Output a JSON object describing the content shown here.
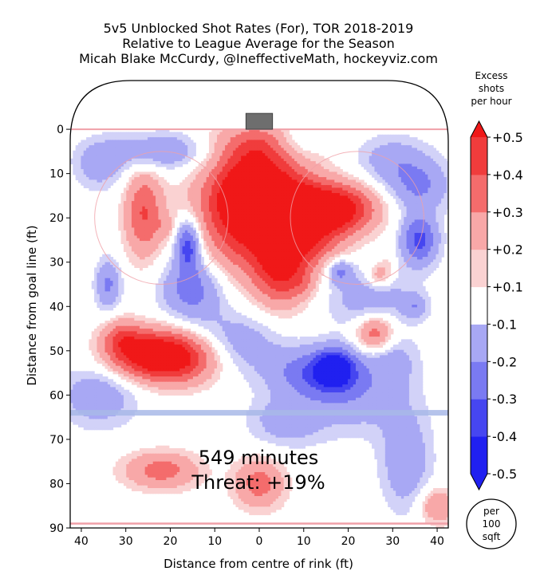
{
  "chart_data": {
    "type": "heatmap",
    "title_lines": [
      "5v5 Unblocked Shot Rates (For), TOR 2018-2019",
      "Relative to League Average for the Season",
      "Micah Blake McCurdy, @IneffectiveMath, hockeyviz.com"
    ],
    "xlabel": "Distance from centre of rink (ft)",
    "ylabel": "Distance from goal line (ft)",
    "xlim": [
      -42.5,
      42.5
    ],
    "ylim": [
      -11,
      90
    ],
    "x_ticks": [
      -40,
      -30,
      -20,
      -10,
      0,
      10,
      20,
      30,
      40
    ],
    "x_tick_labels": [
      "40",
      "30",
      "20",
      "10",
      "0",
      "10",
      "20",
      "30",
      "40"
    ],
    "y_ticks": [
      0,
      10,
      20,
      30,
      40,
      50,
      60,
      70,
      80,
      90
    ],
    "y_tick_labels": [
      "0",
      "10",
      "20",
      "30",
      "40",
      "50",
      "60",
      "70",
      "80",
      "90"
    ],
    "annotation_lines": [
      "549 minutes",
      "Threat: +19%"
    ],
    "colorbar": {
      "title_lines": [
        "Excess",
        "shots",
        "per hour"
      ],
      "levels": [
        -0.5,
        -0.4,
        -0.3,
        -0.2,
        -0.1,
        0.1,
        0.2,
        0.3,
        0.4,
        0.5
      ],
      "tick_labels": [
        "-0.5",
        "-0.4",
        "-0.3",
        "-0.2",
        "-0.1",
        "+0.1",
        "+0.2",
        "+0.3",
        "+0.4",
        "+0.5"
      ],
      "colors": {
        "neg5": "#2020f0",
        "neg4": "#4646f0",
        "neg3": "#7a7af2",
        "neg2": "#a8a8f4",
        "neg1": "#d2d2f8",
        "zero": "#ffffff",
        "pos1": "#fad2d2",
        "pos2": "#f8a8a8",
        "pos3": "#f46c6c",
        "pos4": "#f03c3c",
        "pos5": "#f01818"
      }
    },
    "unit_badge_lines": [
      "per",
      "100",
      "sqft"
    ],
    "rink_lines": {
      "goal_line_ft": 0,
      "blue_line_ft": 64,
      "centre_line_ft": 89,
      "faceoff_circles": [
        [
          -22,
          20
        ],
        [
          22,
          20
        ]
      ],
      "faceoff_radius_ft": 15,
      "line_color": "#f0a0a8",
      "blue_line_color": "#a8b8e8",
      "net_color": "#6e6e6e"
    },
    "blobs": [
      {
        "x": 0,
        "y": 20,
        "sx": 9,
        "sy": 9,
        "a": 0.5
      },
      {
        "x": -2,
        "y": 14,
        "sx": 6,
        "sy": 5,
        "a": 0.3
      },
      {
        "x": 10,
        "y": 18,
        "sx": 7,
        "sy": 4,
        "a": 0.35
      },
      {
        "x": 19,
        "y": 18,
        "sx": 6,
        "sy": 4,
        "a": 0.32
      },
      {
        "x": 5,
        "y": 32,
        "sx": 4,
        "sy": 6,
        "a": 0.3
      },
      {
        "x": 0,
        "y": 4,
        "sx": 7,
        "sy": 4,
        "a": 0.25
      },
      {
        "x": 12,
        "y": 26,
        "sx": 5,
        "sy": 4,
        "a": 0.15
      },
      {
        "x": -24,
        "y": 51,
        "sx": 7,
        "sy": 4,
        "a": 0.5
      },
      {
        "x": -16,
        "y": 52,
        "sx": 6,
        "sy": 4,
        "a": 0.22
      },
      {
        "x": -31,
        "y": 47,
        "sx": 3,
        "sy": 3,
        "a": 0.2
      },
      {
        "x": -26,
        "y": 19,
        "sx": 3,
        "sy": 7,
        "a": 0.3
      },
      {
        "x": -21,
        "y": 22,
        "sx": 1.5,
        "sy": 2,
        "a": 0.08
      },
      {
        "x": 26,
        "y": 46,
        "sx": 3,
        "sy": 3,
        "a": 0.3
      },
      {
        "x": 27,
        "y": 33,
        "sx": 2,
        "sy": 2,
        "a": 0.2
      },
      {
        "x": 29,
        "y": 30,
        "sx": 1.5,
        "sy": 2,
        "a": 0.06
      },
      {
        "x": -22,
        "y": 77,
        "sx": 6,
        "sy": 3,
        "a": 0.25
      },
      {
        "x": 0,
        "y": 80,
        "sx": 4,
        "sy": 4,
        "a": 0.25
      },
      {
        "x": 40,
        "y": 85,
        "sx": 3,
        "sy": 3,
        "a": 0.2
      },
      {
        "x": 10,
        "y": 35,
        "sx": 2,
        "sy": 2,
        "a": 0.08
      },
      {
        "x": -16,
        "y": 26,
        "sx": 2,
        "sy": 4,
        "a": -0.38
      },
      {
        "x": -15,
        "y": 36,
        "sx": 5,
        "sy": 5,
        "a": -0.26
      },
      {
        "x": 17,
        "y": 54,
        "sx": 3,
        "sy": 3,
        "a": -0.38
      },
      {
        "x": 12,
        "y": 55,
        "sx": 7,
        "sy": 4,
        "a": -0.25
      },
      {
        "x": 36,
        "y": 25,
        "sx": 3,
        "sy": 4,
        "a": -0.33
      },
      {
        "x": -34,
        "y": 35,
        "sx": 2,
        "sy": 4,
        "a": -0.22
      },
      {
        "x": -22,
        "y": 5,
        "sx": 8,
        "sy": 3,
        "a": -0.2
      },
      {
        "x": -36,
        "y": 8,
        "sx": 4,
        "sy": 4,
        "a": -0.15
      },
      {
        "x": 30,
        "y": 7,
        "sx": 6,
        "sy": 4,
        "a": -0.15
      },
      {
        "x": 36,
        "y": 13,
        "sx": 5,
        "sy": 4,
        "a": -0.2
      },
      {
        "x": 18,
        "y": 32,
        "sx": 2,
        "sy": 2,
        "a": -0.22
      },
      {
        "x": 25,
        "y": 38,
        "sx": 7,
        "sy": 5,
        "a": -0.16
      },
      {
        "x": 22,
        "y": 60,
        "sx": 8,
        "sy": 6,
        "a": -0.16
      },
      {
        "x": 33,
        "y": 75,
        "sx": 4,
        "sy": 8,
        "a": -0.18
      },
      {
        "x": -36,
        "y": 60,
        "sx": 6,
        "sy": 5,
        "a": -0.18
      },
      {
        "x": -5,
        "y": 48,
        "sx": 7,
        "sy": 5,
        "a": -0.16
      },
      {
        "x": 8,
        "y": 3,
        "sx": 4,
        "sy": 3,
        "a": -0.14
      },
      {
        "x": 35,
        "y": 40,
        "sx": 2,
        "sy": 2,
        "a": -0.15
      },
      {
        "x": 6,
        "y": 66,
        "sx": 6,
        "sy": 4,
        "a": -0.15
      },
      {
        "x": 30,
        "y": 52,
        "sx": 4,
        "sy": 4,
        "a": -0.12
      }
    ]
  }
}
